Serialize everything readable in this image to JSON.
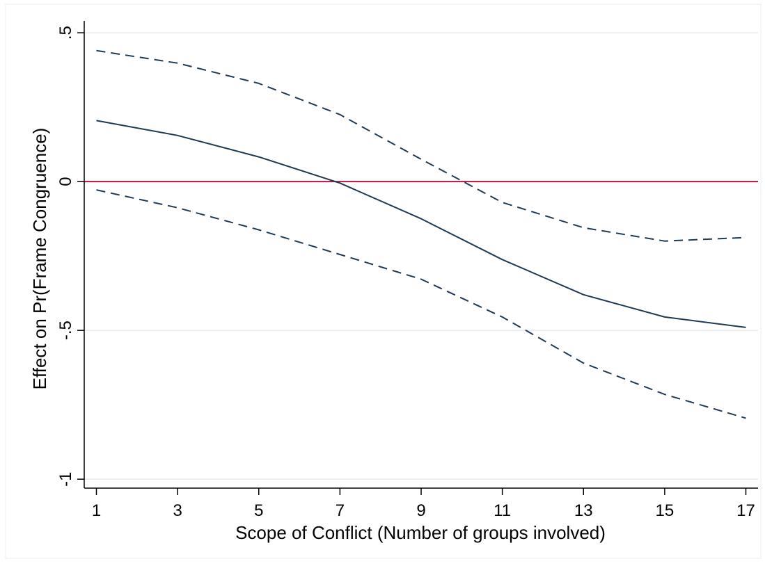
{
  "chart_data": {
    "type": "line",
    "title": "",
    "xlabel": "Scope of Conflict (Number of groups involved)",
    "ylabel": "Effect on Pr(Frame Congruence)",
    "x": [
      1,
      3,
      5,
      7,
      9,
      11,
      13,
      15,
      17
    ],
    "xlim": [
      0.7,
      17.3
    ],
    "ylim": [
      -1.03,
      0.54
    ],
    "x_ticks": [
      1,
      3,
      5,
      7,
      9,
      11,
      13,
      15,
      17
    ],
    "x_tick_labels": [
      "1",
      "3",
      "5",
      "7",
      "9",
      "11",
      "13",
      "15",
      "17"
    ],
    "y_ticks": [
      -1,
      -0.5,
      0,
      0.5
    ],
    "y_tick_labels": [
      "-1",
      "-.5",
      "0",
      ".5"
    ],
    "grid": true,
    "legend": "none",
    "reference_line": {
      "y": 0,
      "color": "#b5163f"
    },
    "series": [
      {
        "role": "estimate",
        "style": "solid",
        "color": "#1f3a55",
        "values": [
          0.205,
          0.155,
          0.083,
          -0.005,
          -0.125,
          -0.262,
          -0.38,
          -0.455,
          -0.49
        ]
      },
      {
        "role": "upper_ci",
        "style": "dashed",
        "color": "#1f3a55",
        "values": [
          0.44,
          0.398,
          0.33,
          0.225,
          0.075,
          -0.07,
          -0.155,
          -0.2,
          -0.188
        ]
      },
      {
        "role": "lower_ci",
        "style": "dashed",
        "color": "#1f3a55",
        "values": [
          -0.028,
          -0.088,
          -0.162,
          -0.245,
          -0.328,
          -0.455,
          -0.61,
          -0.715,
          -0.795
        ]
      }
    ]
  }
}
